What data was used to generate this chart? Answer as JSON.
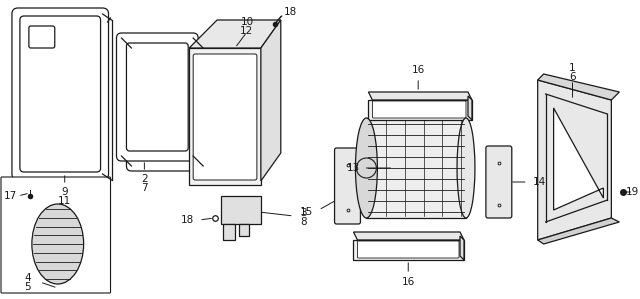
{
  "bg_color": "#ffffff",
  "line_color": "#1a1a1a",
  "label_color": "#1a1a1a",
  "fig_width": 6.4,
  "fig_height": 2.99,
  "dpi": 100
}
